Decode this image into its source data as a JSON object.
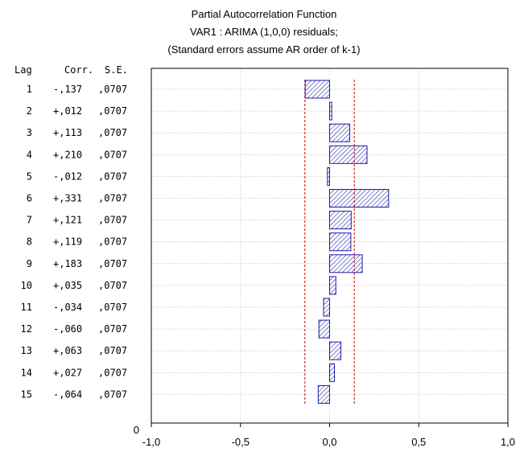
{
  "chart_data": {
    "type": "bar",
    "orientation": "horizontal",
    "title_lines": [
      "Partial Autocorrelation Function",
      "VAR1    : ARIMA (1,0,0) residuals;",
      "(Standard errors assume AR order of k-1)"
    ],
    "table_headers": {
      "lag": "Lag",
      "corr": "Corr.",
      "se": "S.E."
    },
    "rows": [
      {
        "lag": "1",
        "corr_label": "-,137",
        "se_label": ",0707",
        "value": -0.137
      },
      {
        "lag": "2",
        "corr_label": "+,012",
        "se_label": ",0707",
        "value": 0.012
      },
      {
        "lag": "3",
        "corr_label": "+,113",
        "se_label": ",0707",
        "value": 0.113
      },
      {
        "lag": "4",
        "corr_label": "+,210",
        "se_label": ",0707",
        "value": 0.21
      },
      {
        "lag": "5",
        "corr_label": "-,012",
        "se_label": ",0707",
        "value": -0.012
      },
      {
        "lag": "6",
        "corr_label": "+,331",
        "se_label": ",0707",
        "value": 0.331
      },
      {
        "lag": "7",
        "corr_label": "+,121",
        "se_label": ",0707",
        "value": 0.121
      },
      {
        "lag": "8",
        "corr_label": "+,119",
        "se_label": ",0707",
        "value": 0.119
      },
      {
        "lag": "9",
        "corr_label": "+,183",
        "se_label": ",0707",
        "value": 0.183
      },
      {
        "lag": "10",
        "corr_label": "+,035",
        "se_label": ",0707",
        "value": 0.035
      },
      {
        "lag": "11",
        "corr_label": "-,034",
        "se_label": ",0707",
        "value": -0.034
      },
      {
        "lag": "12",
        "corr_label": "-,060",
        "se_label": ",0707",
        "value": -0.06
      },
      {
        "lag": "13",
        "corr_label": "+,063",
        "se_label": ",0707",
        "value": 0.063
      },
      {
        "lag": "14",
        "corr_label": "+,027",
        "se_label": ",0707",
        "value": 0.027
      },
      {
        "lag": "15",
        "corr_label": "-,064",
        "se_label": ",0707",
        "value": -0.064
      }
    ],
    "zero_label": "0",
    "xlim": [
      -1.0,
      1.0
    ],
    "xticks": [
      {
        "value": -1.0,
        "label": "-1,0"
      },
      {
        "value": -0.5,
        "label": "-0,5"
      },
      {
        "value": 0.0,
        "label": "0,0"
      },
      {
        "value": 0.5,
        "label": "0,5"
      },
      {
        "value": 1.0,
        "label": "1,0"
      }
    ],
    "confidence_limit": 0.1386,
    "grid": true,
    "colors": {
      "bar_stroke": "#1a1aa6",
      "bar_fill": "#ffffff",
      "hatch": "#1a1aa6",
      "conf_line": "#cc0000",
      "grid": "#b4b4b4",
      "frame": "#000000"
    }
  }
}
